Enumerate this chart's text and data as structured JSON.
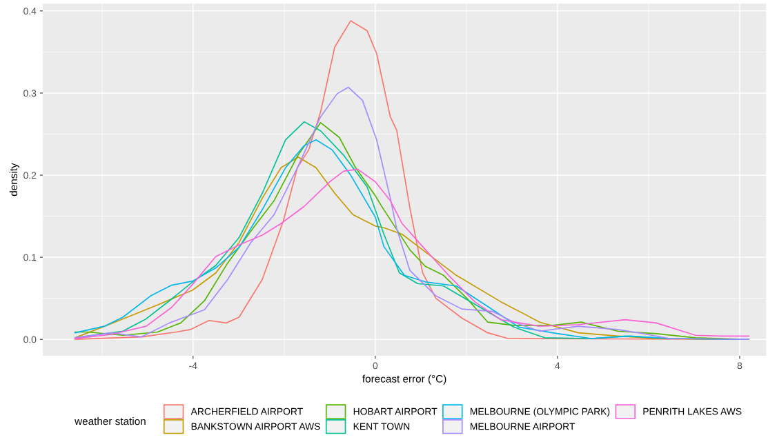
{
  "chart_data": {
    "type": "line",
    "xlabel": "forecast error (°C)",
    "ylabel": "density",
    "legend_title": "weather station",
    "legend": "bottom",
    "grid": true,
    "line_style": "solid",
    "marker": "none",
    "xlim": [
      -7.3,
      8.58
    ],
    "ylim": [
      -0.02,
      0.409
    ],
    "xticks": [
      -4,
      0,
      4,
      8
    ],
    "yticks": [
      {
        "value": 0,
        "label": "0.0"
      },
      {
        "value": 0.1,
        "label": "0.1"
      },
      {
        "value": 0.2,
        "label": "0.2"
      },
      {
        "value": 0.3,
        "label": "0.3"
      },
      {
        "value": 0.4,
        "label": "0.4"
      }
    ],
    "series": [
      {
        "name": "ARCHERFIELD AIRPORT",
        "color": "#f8766d",
        "x": [
          -6.59,
          -5.13,
          -4.37,
          -4.06,
          -3.65,
          -3.27,
          -2.99,
          -2.48,
          -2.02,
          -1.71,
          -1.46,
          -1.2,
          -0.89,
          -0.54,
          -0.18,
          0.03,
          0.33,
          0.47,
          0.76,
          1.04,
          1.33,
          1.9,
          2.47,
          2.92,
          8.2
        ],
        "values": [
          0,
          0.003,
          0.009,
          0.012,
          0.023,
          0.02,
          0.027,
          0.073,
          0.144,
          0.209,
          0.231,
          0.277,
          0.356,
          0.388,
          0.376,
          0.348,
          0.271,
          0.255,
          0.16,
          0.081,
          0.05,
          0.026,
          0.008,
          0.001,
          0
        ]
      },
      {
        "name": "BANKSTOWN AIRPORT AWS",
        "color": "#c49a00",
        "x": [
          -6.59,
          -5.8,
          -4.78,
          -4.01,
          -3.5,
          -2.99,
          -2.48,
          -2.07,
          -1.69,
          -1.3,
          -0.89,
          -0.49,
          0,
          0.19,
          0.59,
          1.04,
          1.78,
          2.75,
          3.61,
          4.46,
          5.32,
          6.17,
          8.2
        ],
        "values": [
          0.002,
          0.019,
          0.042,
          0.06,
          0.081,
          0.118,
          0.172,
          0.209,
          0.222,
          0.209,
          0.178,
          0.152,
          0.138,
          0.136,
          0.128,
          0.109,
          0.078,
          0.046,
          0.021,
          0.008,
          0.004,
          0.001,
          0
        ]
      },
      {
        "name": "HOBART AIRPORT",
        "color": "#53b400",
        "x": [
          -6.59,
          -6.31,
          -5.54,
          -4.78,
          -4.27,
          -3.75,
          -3.24,
          -2.73,
          -2.22,
          -1.71,
          -1.2,
          -0.79,
          -0.43,
          0,
          0.13,
          0.76,
          1.1,
          1.5,
          2.01,
          2.47,
          3.04,
          3.89,
          4.52,
          5.32,
          6.17,
          7.03,
          8.2
        ],
        "values": [
          0.009,
          0.009,
          0.005,
          0.009,
          0.02,
          0.047,
          0.093,
          0.132,
          0.169,
          0.223,
          0.264,
          0.246,
          0.209,
          0.175,
          0.163,
          0.109,
          0.089,
          0.078,
          0.05,
          0.021,
          0.017,
          0.017,
          0.021,
          0.01,
          0.007,
          0.002,
          0
        ]
      },
      {
        "name": "KENT TOWN",
        "color": "#00c094",
        "x": [
          -6.59,
          -5.54,
          -5.03,
          -4.52,
          -4.01,
          -3.5,
          -2.99,
          -2.48,
          -1.97,
          -1.56,
          -1.2,
          -0.69,
          -0.18,
          0.19,
          0.53,
          0.93,
          1.5,
          2.18,
          3.04,
          3.72,
          4.75,
          5.49,
          6.46,
          8.2
        ],
        "values": [
          0.002,
          0.01,
          0.025,
          0.047,
          0.07,
          0.09,
          0.124,
          0.178,
          0.243,
          0.265,
          0.254,
          0.224,
          0.186,
          0.128,
          0.081,
          0.068,
          0.065,
          0.043,
          0.015,
          0.002,
          0.001,
          0.004,
          0.001,
          0
        ]
      },
      {
        "name": "MELBOURNE (OLYMPIC PARK)",
        "color": "#00b6eb",
        "x": [
          -6.59,
          -5.95,
          -5.54,
          -4.93,
          -4.47,
          -4.01,
          -3.5,
          -2.99,
          -2.48,
          -1.97,
          -1.56,
          -1.3,
          -0.95,
          -0.54,
          0,
          0.19,
          0.64,
          1.1,
          1.78,
          2.47,
          3.15,
          4.01,
          4.75,
          5.6,
          6.46,
          8.2
        ],
        "values": [
          0.008,
          0.016,
          0.027,
          0.053,
          0.066,
          0.071,
          0.087,
          0.112,
          0.158,
          0.209,
          0.236,
          0.243,
          0.231,
          0.2,
          0.149,
          0.113,
          0.078,
          0.07,
          0.065,
          0.04,
          0.015,
          0.007,
          0.001,
          0.004,
          0.001,
          0
        ]
      },
      {
        "name": "MELBOURNE AIRPORT",
        "color": "#a58aff",
        "x": [
          -6.59,
          -5.8,
          -5.13,
          -4.52,
          -3.75,
          -3.24,
          -2.73,
          -2.22,
          -1.71,
          -1.2,
          -0.84,
          -0.59,
          -0.28,
          0.03,
          0.33,
          0.47,
          0.76,
          1.33,
          1.9,
          2.58,
          3.04,
          3.61,
          4.46,
          5.32,
          5.89,
          6.46,
          8.2
        ],
        "values": [
          0.002,
          0.008,
          0.003,
          0.02,
          0.036,
          0.073,
          0.118,
          0.152,
          0.209,
          0.271,
          0.299,
          0.307,
          0.291,
          0.243,
          0.172,
          0.135,
          0.084,
          0.053,
          0.037,
          0.034,
          0.021,
          0.01,
          0.016,
          0.012,
          0.007,
          0.001,
          0
        ]
      },
      {
        "name": "PENRITH LAKES AWS",
        "color": "#fb61d7",
        "x": [
          -6.59,
          -5.8,
          -5.03,
          -4.47,
          -4.01,
          -3.5,
          -2.99,
          -2.48,
          -2.07,
          -1.56,
          -1.0,
          -0.69,
          -0.38,
          0,
          0.33,
          0.59,
          1.04,
          1.61,
          2.18,
          2.75,
          3.61,
          4.46,
          5.49,
          6.17,
          7.03,
          7.6,
          8.2
        ],
        "values": [
          0.001,
          0.006,
          0.016,
          0.039,
          0.067,
          0.101,
          0.115,
          0.127,
          0.141,
          0.162,
          0.192,
          0.205,
          0.207,
          0.192,
          0.169,
          0.141,
          0.113,
          0.078,
          0.046,
          0.024,
          0.016,
          0.018,
          0.024,
          0.02,
          0.005,
          0.004,
          0.004
        ]
      }
    ]
  }
}
